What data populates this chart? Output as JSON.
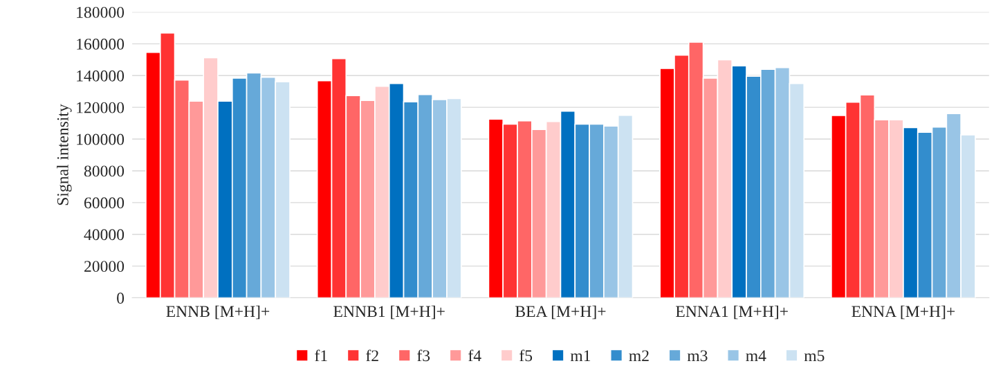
{
  "chart_data": {
    "type": "bar",
    "ylabel": "Signal intensity",
    "categories": [
      "ENNB [M+H]+",
      "ENNB1 [M+H]+",
      "BEA [M+H]+",
      "ENNA1 [M+H]+",
      "ENNA [M+H]+"
    ],
    "series": [
      {
        "name": "f1",
        "color": "#ff0000",
        "values": [
          154600,
          136800,
          112600,
          144500,
          114900
        ]
      },
      {
        "name": "f2",
        "color": "#ff3333",
        "values": [
          166800,
          150700,
          109400,
          152900,
          123300
        ]
      },
      {
        "name": "f3",
        "color": "#ff6666",
        "values": [
          137200,
          127400,
          111500,
          161100,
          127800
        ]
      },
      {
        "name": "f4",
        "color": "#ff9999",
        "values": [
          123900,
          124300,
          106000,
          138400,
          112100
        ]
      },
      {
        "name": "f5",
        "color": "#ffcccc",
        "values": [
          151300,
          133300,
          111100,
          150000,
          112100
        ]
      },
      {
        "name": "m1",
        "color": "#0070c0",
        "values": [
          123900,
          135000,
          117600,
          146100,
          107200
        ]
      },
      {
        "name": "m2",
        "color": "#338dcd",
        "values": [
          138400,
          123500,
          109400,
          139600,
          104300
        ]
      },
      {
        "name": "m3",
        "color": "#66a9d9",
        "values": [
          141700,
          128100,
          109400,
          143900,
          107600
        ]
      },
      {
        "name": "m4",
        "color": "#99c5e6",
        "values": [
          138900,
          124900,
          108200,
          145000,
          116100
        ]
      },
      {
        "name": "m5",
        "color": "#cce2f2",
        "values": [
          136100,
          125500,
          115000,
          135000,
          102700
        ]
      }
    ],
    "ylim": [
      0,
      180000
    ],
    "yticks": [
      0,
      20000,
      40000,
      60000,
      80000,
      100000,
      120000,
      140000,
      160000,
      180000
    ],
    "grid": "y",
    "legend": "bottom"
  }
}
